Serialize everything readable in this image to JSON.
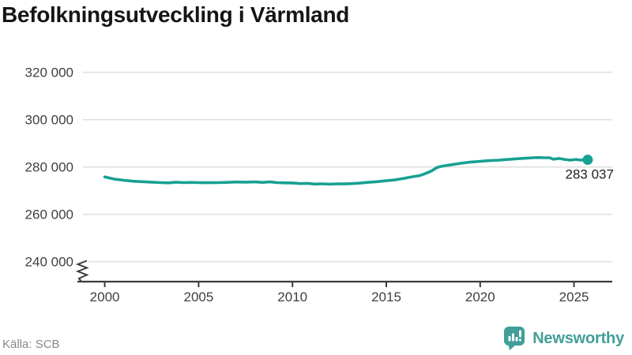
{
  "title": "Befolkningsutveckling i Värmland",
  "footer": {
    "source": "Källa: SCB",
    "brand": "Newsworthy",
    "brand_color": "#419e99"
  },
  "chart_data": {
    "type": "line",
    "title": "Befolkningsutveckling i Värmland",
    "xlabel": "",
    "ylabel": "",
    "legend_position": "none",
    "grid": "horizontal",
    "axis_break_bottom": true,
    "line_color": "#18a093",
    "marker": "dot-on-last-point",
    "end_label": "283 037",
    "end_value": 283037,
    "y_ticks": [
      320000,
      300000,
      280000,
      260000,
      240000
    ],
    "y_tick_labels": [
      "320 000",
      "300 000",
      "280 000",
      "260 000",
      "240 000"
    ],
    "x_ticks": [
      2000,
      2005,
      2010,
      2015,
      2020,
      2025
    ],
    "x_tick_labels": [
      "2000",
      "2005",
      "2010",
      "2015",
      "2020",
      "2025"
    ],
    "xlim": [
      2000,
      2025.75
    ],
    "ylim_displayed": [
      237000,
      323000
    ],
    "series": [
      {
        "name": "Befolkning i Värmland",
        "points": [
          [
            2000,
            275800
          ],
          [
            2000.5,
            274900
          ],
          [
            2001,
            274400
          ],
          [
            2001.5,
            274000
          ],
          [
            2002,
            273800
          ],
          [
            2002.5,
            273600
          ],
          [
            2003,
            273400
          ],
          [
            2003.4,
            273300
          ],
          [
            2003.8,
            273600
          ],
          [
            2004.2,
            273400
          ],
          [
            2004.6,
            273500
          ],
          [
            2005,
            273400
          ],
          [
            2005.5,
            273350
          ],
          [
            2006,
            273400
          ],
          [
            2006.5,
            273500
          ],
          [
            2007,
            273650
          ],
          [
            2007.5,
            273600
          ],
          [
            2008,
            273700
          ],
          [
            2008.4,
            273500
          ],
          [
            2008.8,
            273700
          ],
          [
            2009.2,
            273400
          ],
          [
            2009.6,
            273300
          ],
          [
            2010,
            273250
          ],
          [
            2010.4,
            273000
          ],
          [
            2010.8,
            273100
          ],
          [
            2011.2,
            272800
          ],
          [
            2011.6,
            272900
          ],
          [
            2012,
            272750
          ],
          [
            2012.4,
            272900
          ],
          [
            2012.8,
            272850
          ],
          [
            2013.2,
            273000
          ],
          [
            2013.6,
            273200
          ],
          [
            2014,
            273500
          ],
          [
            2014.5,
            273800
          ],
          [
            2015,
            274200
          ],
          [
            2015.5,
            274600
          ],
          [
            2016,
            275300
          ],
          [
            2016.4,
            275900
          ],
          [
            2016.8,
            276400
          ],
          [
            2017.1,
            277300
          ],
          [
            2017.4,
            278300
          ],
          [
            2017.7,
            279800
          ],
          [
            2018,
            280400
          ],
          [
            2018.5,
            281000
          ],
          [
            2019,
            281600
          ],
          [
            2019.5,
            282100
          ],
          [
            2020,
            282400
          ],
          [
            2020.5,
            282700
          ],
          [
            2021,
            282900
          ],
          [
            2021.5,
            283200
          ],
          [
            2022,
            283500
          ],
          [
            2022.4,
            283700
          ],
          [
            2022.8,
            283900
          ],
          [
            2023.1,
            284000
          ],
          [
            2023.4,
            283900
          ],
          [
            2023.7,
            283900
          ],
          [
            2023.9,
            283300
          ],
          [
            2024.2,
            283600
          ],
          [
            2024.5,
            283200
          ],
          [
            2024.8,
            282900
          ],
          [
            2025.1,
            283200
          ],
          [
            2025.35,
            282900
          ],
          [
            2025.55,
            283100
          ],
          [
            2025.73,
            283037
          ]
        ]
      }
    ]
  }
}
